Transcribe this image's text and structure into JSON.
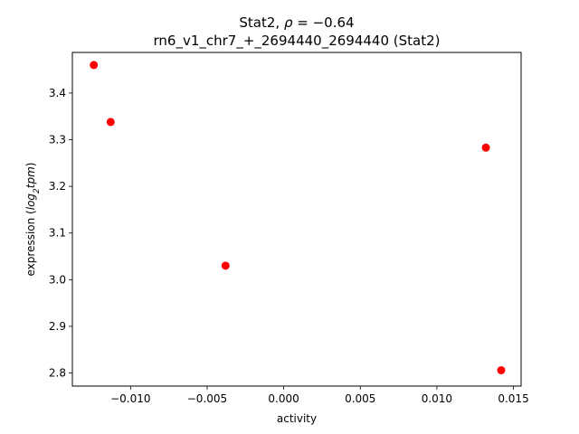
{
  "chart_data": {
    "type": "scatter",
    "title_prefix": "Stat2, ",
    "title_rho_symbol": "ρ",
    "title_rho_value": " = −0.64",
    "subtitle": "rn6_v1_chr7_+_2694440_2694440 (Stat2)",
    "xlabel": "activity",
    "ylabel_prefix": "expression (",
    "ylabel_log": "log",
    "ylabel_sub": "2",
    "ylabel_unit": "tpm",
    "ylabel_suffix": ")",
    "xlim": [
      -0.0138,
      0.0155
    ],
    "ylim": [
      2.772,
      3.487
    ],
    "xticks": [
      -0.01,
      -0.005,
      0.0,
      0.005,
      0.01,
      0.015
    ],
    "xtick_labels": [
      "−0.010",
      "−0.005",
      "0.000",
      "0.005",
      "0.010",
      "0.015"
    ],
    "yticks": [
      2.8,
      2.9,
      3.0,
      3.1,
      3.2,
      3.3,
      3.4
    ],
    "ytick_labels": [
      "2.8",
      "2.9",
      "3.0",
      "3.1",
      "3.2",
      "3.3",
      "3.4"
    ],
    "marker_color": "#ff0000",
    "grid": false,
    "x": [
      -0.0124,
      -0.0113,
      -0.0038,
      0.0132,
      0.0142
    ],
    "y": [
      3.46,
      3.338,
      3.03,
      3.283,
      2.806
    ]
  }
}
